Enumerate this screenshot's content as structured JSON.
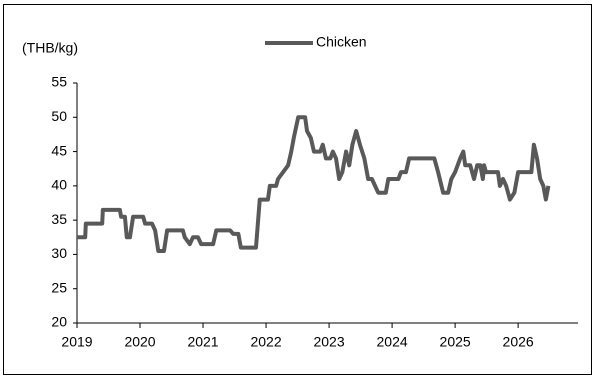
{
  "chart_data": {
    "type": "line",
    "y_unit_label": "(THB/kg)",
    "xlim": [
      2019,
      2026.95
    ],
    "xticks": [
      2019,
      2020,
      2021,
      2022,
      2023,
      2024,
      2025,
      2026
    ],
    "ylim": [
      20,
      55
    ],
    "yticks": [
      20,
      25,
      30,
      35,
      40,
      45,
      50,
      55
    ],
    "legend": "top",
    "x": [
      2019.0,
      2019.13,
      2019.14,
      2019.4,
      2019.41,
      2019.68,
      2019.7,
      2019.76,
      2019.79,
      2019.84,
      2019.89,
      2020.05,
      2020.08,
      2020.19,
      2020.24,
      2020.29,
      2020.38,
      2020.43,
      2020.68,
      2020.71,
      2020.79,
      2020.84,
      2020.92,
      2020.97,
      2021.16,
      2021.21,
      2021.43,
      2021.48,
      2021.56,
      2021.6,
      2021.84,
      2021.9,
      2022.03,
      2022.06,
      2022.16,
      2022.19,
      2022.27,
      2022.35,
      2022.4,
      2022.44,
      2022.51,
      2022.62,
      2022.65,
      2022.71,
      2022.76,
      2022.86,
      2022.9,
      2022.95,
      2023.02,
      2023.06,
      2023.11,
      2023.16,
      2023.21,
      2023.27,
      2023.32,
      2023.37,
      2023.43,
      2023.49,
      2023.56,
      2023.62,
      2023.68,
      2023.73,
      2023.78,
      2023.9,
      2023.94,
      2024.1,
      2024.14,
      2024.22,
      2024.27,
      2024.67,
      2024.73,
      2024.81,
      2024.89,
      2024.94,
      2025.0,
      2025.08,
      2025.13,
      2025.16,
      2025.24,
      2025.3,
      2025.35,
      2025.4,
      2025.44,
      2025.46,
      2025.49,
      2025.68,
      2025.71,
      2025.76,
      2025.81,
      2025.87,
      2025.94,
      2026.0,
      2026.21,
      2026.25,
      2026.3,
      2026.35,
      2026.4,
      2026.44,
      2026.48
    ],
    "series": [
      {
        "name": "Chicken",
        "color": "#595959",
        "values": [
          32.5,
          32.5,
          34.5,
          34.5,
          36.5,
          36.5,
          35.5,
          35.5,
          32.5,
          32.5,
          35.5,
          35.5,
          34.5,
          34.5,
          33.5,
          30.5,
          30.5,
          33.5,
          33.5,
          32.5,
          31.5,
          32.5,
          32.5,
          31.5,
          31.5,
          33.5,
          33.5,
          33,
          33,
          31,
          31,
          38,
          38,
          40,
          40,
          41,
          42,
          43,
          45,
          47,
          50,
          50,
          48,
          47,
          45,
          45,
          46,
          44,
          44,
          45,
          44,
          41,
          42,
          45,
          43,
          46,
          48,
          46,
          44,
          41,
          41,
          40,
          39,
          39,
          41,
          41,
          42,
          42,
          44,
          44,
          42,
          39,
          39,
          41,
          42,
          44,
          45,
          43,
          43,
          41,
          43,
          43,
          41,
          43,
          42,
          42,
          40,
          41,
          40,
          38,
          39,
          42,
          42,
          46,
          44,
          41,
          40,
          38,
          40
        ]
      }
    ]
  }
}
